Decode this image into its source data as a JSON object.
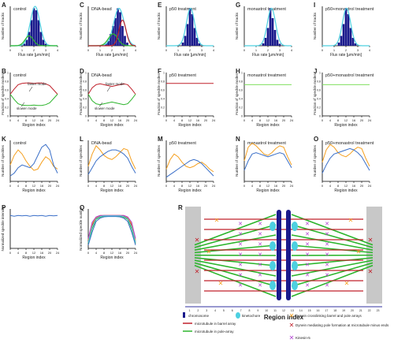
{
  "panels": {
    "A": {
      "letter": "A",
      "title": "control",
      "xlabel": "Flux rate [μm/min]",
      "ylabel": "Number of tracks"
    },
    "C": {
      "letter": "C",
      "title": "DNA-bead",
      "xlabel": "Flux rate [μm/min]",
      "ylabel": "Number of tracks"
    },
    "E": {
      "letter": "E",
      "title": "p50 treatment",
      "xlabel": "Flux rate [μm/min]",
      "ylabel": "Number of tracks"
    },
    "G": {
      "letter": "G",
      "title": "monastrol treatment",
      "xlabel": "Flux rate [μm/min]",
      "ylabel": "Number of tracks"
    },
    "I": {
      "letter": "I",
      "title": "p50+monastrol treatment",
      "xlabel": "Flux rate [μm/min]",
      "ylabel": "Number of tracks"
    },
    "B": {
      "letter": "B",
      "title": "control",
      "xlabel": "Region index",
      "ylabel": "Fraction of speckle modes",
      "annotations": [
        "faster mode",
        "slower mode"
      ]
    },
    "D": {
      "letter": "D",
      "title": "DNA-bead",
      "xlabel": "Region index",
      "ylabel": "Fraction of speckle modes",
      "annotations": [
        "faster mode",
        "slower mode"
      ]
    },
    "F": {
      "letter": "F",
      "title": "p50 treatment",
      "xlabel": "Region index",
      "ylabel": "Fraction of speckle modes"
    },
    "H": {
      "letter": "H",
      "title": "monastrol treatment",
      "xlabel": "Region index",
      "ylabel": "Fraction of speckle modes"
    },
    "J": {
      "letter": "J",
      "title": "p50+monastrol treatment",
      "xlabel": "Region index",
      "ylabel": "Fraction of speckle modes"
    },
    "K": {
      "letter": "K",
      "title": "control",
      "xlabel": "Region index",
      "ylabel": "Number of speckles"
    },
    "L": {
      "letter": "L",
      "title": "DNA-bead",
      "xlabel": "Region index",
      "ylabel": "Number of speckles"
    },
    "M": {
      "letter": "M",
      "title": "p50 treatment",
      "xlabel": "Region index",
      "ylabel": "Number of speckles"
    },
    "N": {
      "letter": "N",
      "title": "monastrol treatment",
      "xlabel": "Region index",
      "ylabel": "Number of speckles"
    },
    "O": {
      "letter": "O",
      "title": "p50+monastrol treatment",
      "xlabel": "Region index",
      "ylabel": "Number of speckles"
    },
    "P": {
      "letter": "P",
      "title": "",
      "xlabel": "Region index",
      "ylabel": "Normalized speckle intensity"
    },
    "Q": {
      "letter": "Q",
      "title": "",
      "xlabel": "Region index",
      "ylabel": "Normalized speckle number"
    },
    "R": {
      "letter": "R",
      "title": "",
      "xlabel": "Region index"
    }
  },
  "ticks": {
    "region": [
      "0",
      "4",
      "8",
      "12",
      "16",
      "20",
      "24"
    ],
    "region_short": [
      "0",
      "4",
      "8",
      "12",
      "16",
      "20"
    ],
    "flux": [
      "0",
      "1",
      "2",
      "3",
      "4"
    ],
    "frac": [
      "0",
      "0.2",
      "0.4",
      "0.6",
      "0.8",
      "1"
    ],
    "R_index": [
      "1",
      "2",
      "3",
      "4",
      "5",
      "6",
      "7",
      "8",
      "9",
      "10",
      "11",
      "12",
      "13",
      "14",
      "15",
      "16",
      "17",
      "18",
      "19",
      "20",
      "21",
      "22",
      "23"
    ]
  },
  "legend": [
    {
      "label": "chromosome",
      "icon": "blue-bar"
    },
    {
      "label": "kinetochore",
      "icon": "cyan-oval"
    },
    {
      "label": "microtubule in barrel array",
      "icon": "red-line"
    },
    {
      "label": "microtubule in pole-array",
      "icon": "green-line"
    },
    {
      "label": "Dynein crosslinking barrel and pole arrays",
      "icon": "orange-cross"
    },
    {
      "label": "Dynein mediating pole formation at microtubule minus ends",
      "icon": "red-cross"
    },
    {
      "label": "Kinesin-5",
      "icon": "purple-link"
    }
  ],
  "colors": {
    "navy": "#1a1a8c",
    "cyan": "#4dd0e1",
    "red": "#c0202a",
    "green": "#2db52d",
    "orange": "#f5a020",
    "blue": "#3a6fc8",
    "purple": "#b040d0",
    "grey": "#c8c8c8",
    "lime": "#80e060"
  },
  "chart_data": [
    {
      "panel": "A",
      "type": "bar",
      "xlim": [
        0,
        4
      ],
      "ylim": [
        0,
        1000
      ],
      "bins": [
        1.2,
        1.4,
        1.6,
        1.8,
        2.0,
        2.2,
        2.4,
        2.6,
        2.8,
        3.0
      ],
      "values": [
        50,
        150,
        350,
        650,
        950,
        900,
        650,
        350,
        150,
        50
      ],
      "series": [
        {
          "mean": 2.1,
          "sd": 0.4,
          "peak": 1000,
          "color": "cyan"
        },
        {
          "mean": 1.6,
          "sd": 0.35,
          "peak": 250,
          "color": "green"
        }
      ]
    },
    {
      "panel": "C",
      "type": "bar",
      "xlim": [
        0,
        4
      ],
      "ylim": [
        0,
        1000
      ],
      "bins": [
        1.5,
        1.7,
        1.9,
        2.1,
        2.3,
        2.5,
        2.7,
        2.9,
        3.1,
        3.3
      ],
      "values": [
        50,
        120,
        300,
        500,
        700,
        950,
        850,
        500,
        250,
        80
      ],
      "series": [
        {
          "mean": 2.6,
          "sd": 0.45,
          "peak": 950,
          "color": "cyan"
        },
        {
          "mean": 2.1,
          "sd": 0.4,
          "peak": 300,
          "color": "green"
        },
        {
          "mean": 2.9,
          "sd": 0.3,
          "peak": 650,
          "color": "red"
        }
      ]
    },
    {
      "panel": "E",
      "type": "bar",
      "xlim": [
        0,
        4
      ],
      "ylim": [
        0,
        1000
      ],
      "bins": [
        1.4,
        1.6,
        1.8,
        2.0,
        2.2,
        2.4,
        2.6,
        2.8
      ],
      "values": [
        80,
        250,
        550,
        950,
        800,
        450,
        200,
        60
      ],
      "series": [
        {
          "mean": 2.05,
          "sd": 0.35,
          "peak": 950,
          "color": "cyan"
        }
      ]
    },
    {
      "panel": "G",
      "type": "bar",
      "xlim": [
        0,
        4
      ],
      "ylim": [
        0,
        1000
      ],
      "bins": [
        1.6,
        1.8,
        2.0,
        2.2,
        2.4,
        2.6,
        2.8,
        3.0
      ],
      "values": [
        60,
        200,
        450,
        950,
        700,
        400,
        150,
        50
      ],
      "series": [
        {
          "mean": 2.3,
          "sd": 0.35,
          "peak": 950,
          "color": "cyan"
        }
      ]
    },
    {
      "panel": "I",
      "type": "bar",
      "xlim": [
        0,
        4
      ],
      "ylim": [
        0,
        1000
      ],
      "bins": [
        1.4,
        1.6,
        1.8,
        2.0,
        2.2,
        2.4,
        2.6,
        2.8
      ],
      "values": [
        80,
        250,
        550,
        950,
        800,
        450,
        200,
        60
      ],
      "series": [
        {
          "mean": 2.05,
          "sd": 0.35,
          "peak": 950,
          "color": "cyan"
        }
      ]
    },
    {
      "panel": "B",
      "type": "line",
      "xlim": [
        0,
        24
      ],
      "ylim": [
        0,
        1
      ],
      "x": [
        0,
        2,
        4,
        6,
        8,
        10,
        12,
        14,
        16,
        18,
        20,
        22,
        24
      ],
      "series": [
        {
          "color": "red",
          "values": [
            0.5,
            0.62,
            0.72,
            0.75,
            0.76,
            0.76,
            0.75,
            0.76,
            0.76,
            0.74,
            0.7,
            0.6,
            0.5
          ]
        },
        {
          "color": "green",
          "values": [
            0.5,
            0.38,
            0.28,
            0.25,
            0.24,
            0.24,
            0.25,
            0.24,
            0.24,
            0.26,
            0.3,
            0.4,
            0.5
          ]
        }
      ]
    },
    {
      "panel": "D",
      "type": "line",
      "xlim": [
        0,
        24
      ],
      "ylim": [
        0,
        1
      ],
      "x": [
        0,
        2,
        4,
        6,
        8,
        10,
        12,
        14,
        16,
        18,
        20,
        22,
        24
      ],
      "series": [
        {
          "color": "red",
          "values": [
            0.5,
            0.65,
            0.72,
            0.74,
            0.72,
            0.7,
            0.68,
            0.7,
            0.72,
            0.74,
            0.72,
            0.62,
            0.5
          ]
        },
        {
          "color": "green",
          "values": [
            0.5,
            0.35,
            0.28,
            0.26,
            0.28,
            0.3,
            0.32,
            0.3,
            0.28,
            0.26,
            0.28,
            0.38,
            0.5
          ]
        }
      ]
    },
    {
      "panel": "F",
      "type": "line",
      "xlim": [
        0,
        24
      ],
      "ylim": [
        0,
        1
      ],
      "x": [
        0,
        24
      ],
      "series": [
        {
          "color": "red",
          "values": [
            0.75,
            0.75
          ]
        }
      ]
    },
    {
      "panel": "H",
      "type": "line",
      "xlim": [
        0,
        24
      ],
      "ylim": [
        0,
        1
      ],
      "x": [
        0,
        24
      ],
      "series": [
        {
          "color": "lime",
          "values": [
            0.72,
            0.72
          ]
        }
      ]
    },
    {
      "panel": "J",
      "type": "line",
      "xlim": [
        0,
        24
      ],
      "ylim": [
        0,
        1
      ],
      "x": [
        0,
        24
      ],
      "series": [
        {
          "color": "lime",
          "values": [
            0.72,
            0.72
          ]
        }
      ]
    },
    {
      "panel": "K",
      "type": "line",
      "xlim": [
        0,
        24
      ],
      "ylim": [
        0,
        300
      ],
      "x": [
        0,
        2,
        4,
        6,
        8,
        10,
        12,
        14,
        16,
        18,
        20,
        22,
        24
      ],
      "series": [
        {
          "color": "orange",
          "values": [
            120,
            190,
            230,
            200,
            150,
            110,
            80,
            90,
            140,
            180,
            160,
            110,
            90
          ]
        },
        {
          "color": "blue",
          "values": [
            40,
            60,
            100,
            120,
            110,
            100,
            130,
            190,
            250,
            270,
            230,
            120,
            60
          ]
        }
      ]
    },
    {
      "panel": "L",
      "type": "line",
      "xlim": [
        0,
        24
      ],
      "ylim": [
        0,
        300
      ],
      "x": [
        0,
        2,
        4,
        6,
        8,
        10,
        12,
        14,
        16,
        18,
        20,
        22,
        24
      ],
      "series": [
        {
          "color": "orange",
          "values": [
            110,
            200,
            260,
            230,
            190,
            170,
            160,
            180,
            210,
            240,
            230,
            150,
            90
          ]
        },
        {
          "color": "blue",
          "values": [
            50,
            100,
            150,
            180,
            200,
            220,
            230,
            230,
            220,
            200,
            170,
            110,
            60
          ]
        }
      ]
    },
    {
      "panel": "M",
      "type": "line",
      "xlim": [
        0,
        24
      ],
      "ylim": [
        0,
        300
      ],
      "x": [
        0,
        2,
        4,
        6,
        8,
        10,
        12,
        14,
        16,
        18,
        20,
        22,
        24
      ],
      "series": [
        {
          "color": "orange",
          "values": [
            90,
            160,
            200,
            180,
            140,
            110,
            100,
            110,
            130,
            140,
            120,
            90,
            70
          ]
        },
        {
          "color": "blue",
          "values": [
            30,
            50,
            70,
            90,
            110,
            130,
            150,
            160,
            150,
            130,
            100,
            70,
            40
          ]
        }
      ]
    },
    {
      "panel": "N",
      "type": "line",
      "xlim": [
        0,
        24
      ],
      "ylim": [
        0,
        300
      ],
      "x": [
        0,
        2,
        4,
        6,
        8,
        10,
        12,
        14,
        16,
        18,
        20,
        22,
        24
      ],
      "series": [
        {
          "color": "orange",
          "values": [
            150,
            250,
            280,
            260,
            230,
            200,
            190,
            210,
            240,
            260,
            250,
            180,
            120
          ]
        },
        {
          "color": "blue",
          "values": [
            80,
            150,
            200,
            210,
            200,
            190,
            180,
            190,
            200,
            210,
            200,
            150,
            100
          ]
        }
      ]
    },
    {
      "panel": "O",
      "type": "line",
      "xlim": [
        0,
        24
      ],
      "ylim": [
        0,
        300
      ],
      "x": [
        0,
        2,
        4,
        6,
        8,
        10,
        12,
        14,
        16,
        18,
        20,
        22,
        24
      ],
      "series": [
        {
          "color": "orange",
          "values": [
            140,
            230,
            270,
            250,
            210,
            190,
            180,
            200,
            230,
            250,
            240,
            170,
            110
          ]
        },
        {
          "color": "blue",
          "values": [
            60,
            120,
            170,
            200,
            210,
            220,
            230,
            240,
            230,
            210,
            180,
            130,
            80
          ]
        }
      ]
    },
    {
      "panel": "P",
      "type": "line",
      "xlim": [
        0,
        24
      ],
      "ylim": [
        0,
        1.2
      ],
      "x": [
        0,
        2,
        4,
        6,
        8,
        10,
        12,
        14,
        16,
        18,
        20,
        22,
        24
      ],
      "series": [
        {
          "color": "blue",
          "values": [
            1.0,
            0.98,
            1.0,
            0.99,
            1.0,
            0.98,
            1.0,
            0.99,
            1.0,
            0.98,
            1.0,
            0.99,
            1.0
          ]
        }
      ]
    },
    {
      "panel": "Q",
      "type": "line",
      "xlim": [
        0,
        24
      ],
      "ylim": [
        0,
        1.2
      ],
      "x": [
        0,
        2,
        4,
        6,
        8,
        10,
        12,
        14,
        16,
        18,
        20,
        22,
        24
      ],
      "series": [
        {
          "color": "red",
          "values": [
            0.2,
            0.7,
            0.92,
            0.98,
            1.0,
            1.0,
            1.0,
            1.0,
            1.0,
            0.98,
            0.92,
            0.7,
            0.2
          ]
        },
        {
          "color": "orange",
          "values": [
            0.25,
            0.75,
            0.95,
            1.0,
            1.0,
            1.0,
            1.0,
            1.0,
            1.0,
            1.0,
            0.95,
            0.75,
            0.25
          ]
        },
        {
          "color": "green",
          "values": [
            0.15,
            0.6,
            0.88,
            0.95,
            0.98,
            0.98,
            0.98,
            0.98,
            0.98,
            0.95,
            0.88,
            0.6,
            0.15
          ]
        },
        {
          "color": "blue",
          "values": [
            0.1,
            0.5,
            0.82,
            0.92,
            0.96,
            0.97,
            0.97,
            0.97,
            0.96,
            0.92,
            0.82,
            0.5,
            0.1
          ]
        },
        {
          "color": "purple",
          "values": [
            0.3,
            0.8,
            0.96,
            1.0,
            1.0,
            1.0,
            1.0,
            1.0,
            1.0,
            1.0,
            0.96,
            0.8,
            0.3
          ]
        },
        {
          "color": "cyan",
          "values": [
            0.18,
            0.65,
            0.9,
            0.97,
            0.99,
            0.99,
            0.99,
            0.99,
            0.99,
            0.97,
            0.9,
            0.65,
            0.18
          ]
        }
      ]
    }
  ]
}
